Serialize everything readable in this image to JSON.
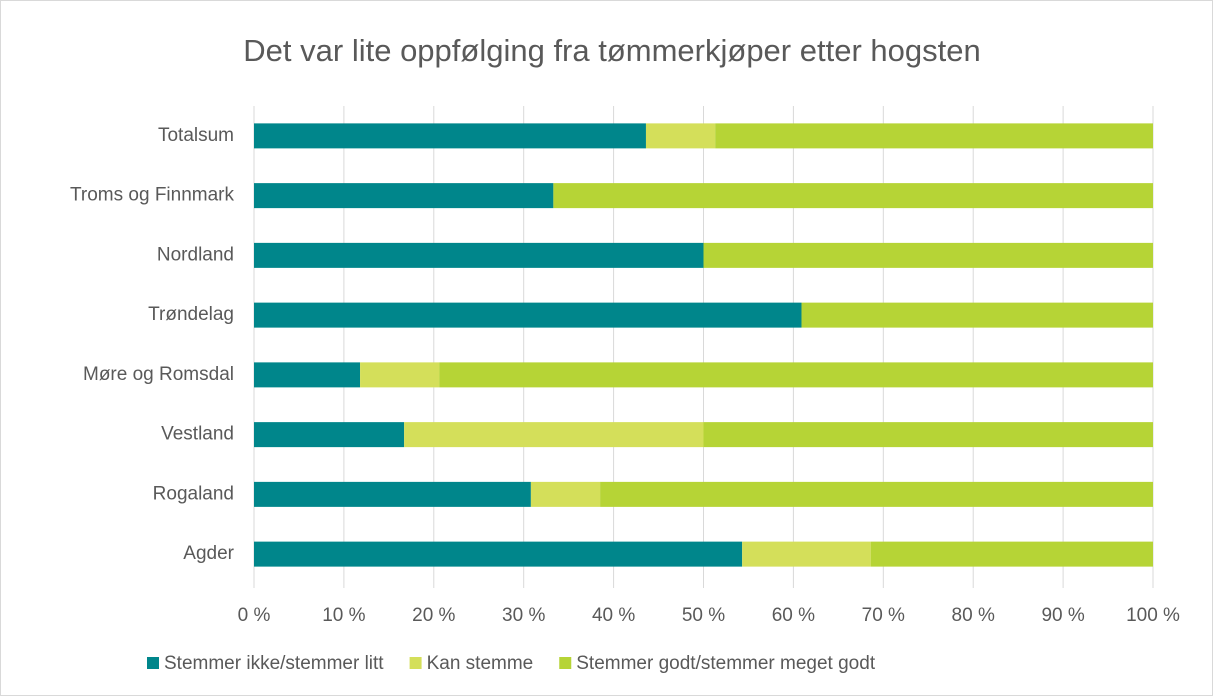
{
  "chart_data": {
    "type": "stacked-barh",
    "title": "Det var lite oppfølging fra tømmerkjøper etter hogsten",
    "categories": [
      "Totalsum",
      "Troms og Finnmark",
      "Nordland",
      "Trøndelag",
      "Møre og Romsdal",
      "Vestland",
      "Rogaland",
      "Agder"
    ],
    "series": [
      {
        "name": "Stemmer ikke/stemmer litt",
        "color": "#00868b",
        "values": [
          43.6,
          33.3,
          50,
          60.9,
          11.8,
          16.7,
          30.8,
          54.3
        ]
      },
      {
        "name": "Kan stemme",
        "color": "#d4df5a",
        "values": [
          7.7,
          0,
          0,
          0,
          8.8,
          33.3,
          7.7,
          14.3
        ]
      },
      {
        "name": "Stemmer godt/stemmer meget godt",
        "color": "#b6d436",
        "values": [
          48.7,
          66.7,
          50,
          39.1,
          79.4,
          50,
          61.5,
          31.4
        ]
      }
    ],
    "xlim": [
      0,
      100
    ],
    "xticks": [
      {
        "value": 0,
        "label": "0 %"
      },
      {
        "value": 10,
        "label": "10 %"
      },
      {
        "value": 20,
        "label": "20 %"
      },
      {
        "value": 30,
        "label": "30 %"
      },
      {
        "value": 40,
        "label": "40 %"
      },
      {
        "value": 50,
        "label": "50 %"
      },
      {
        "value": 60,
        "label": "60 %"
      },
      {
        "value": 70,
        "label": "70 %"
      },
      {
        "value": 80,
        "label": "80 %"
      },
      {
        "value": 90,
        "label": "90 %"
      },
      {
        "value": 100,
        "label": "100 %"
      }
    ],
    "grid": true,
    "legend": "bottom"
  }
}
